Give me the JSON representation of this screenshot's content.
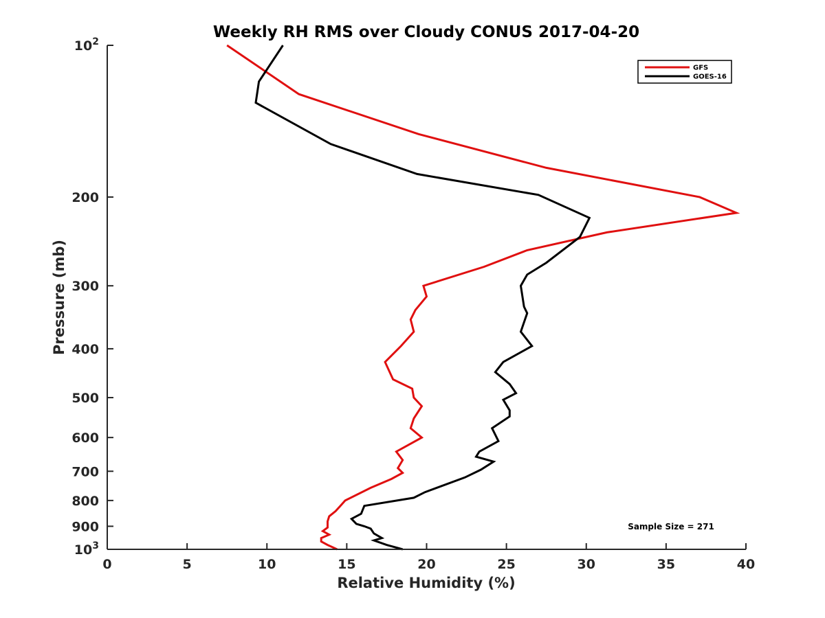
{
  "chart_data": {
    "type": "line",
    "title": "Weekly RH RMS over Cloudy CONUS 2017-04-20",
    "xlabel": "Relative Humidity (%)",
    "ylabel": "Pressure (mb)",
    "xlim": [
      0,
      40
    ],
    "ylim": [
      100,
      1000
    ],
    "y_scale": "log",
    "y_reversed": true,
    "x_ticks": [
      "0",
      "5",
      "10",
      "15",
      "20",
      "25",
      "30",
      "35",
      "40"
    ],
    "y_ticks": [
      {
        "value": 100,
        "label": "10",
        "sup": "2"
      },
      {
        "value": 200,
        "label": "200",
        "sup": ""
      },
      {
        "value": 300,
        "label": "300",
        "sup": ""
      },
      {
        "value": 400,
        "label": "400",
        "sup": ""
      },
      {
        "value": 500,
        "label": "500",
        "sup": ""
      },
      {
        "value": 600,
        "label": "600",
        "sup": ""
      },
      {
        "value": 700,
        "label": "700",
        "sup": ""
      },
      {
        "value": 800,
        "label": "800",
        "sup": ""
      },
      {
        "value": 900,
        "label": "900",
        "sup": ""
      },
      {
        "value": 1000,
        "label": "10",
        "sup": "3"
      }
    ],
    "grid": false,
    "legend_position": "top-right",
    "series": [
      {
        "name": "GFS",
        "color": "#e01010",
        "points": [
          [
            7.5,
            100
          ],
          [
            12,
            125
          ],
          [
            19.5,
            150
          ],
          [
            27.5,
            175
          ],
          [
            37.1,
            200
          ],
          [
            39.4,
            215
          ],
          [
            31.3,
            235
          ],
          [
            26.3,
            255
          ],
          [
            23.6,
            275
          ],
          [
            19.8,
            300
          ],
          [
            20,
            315
          ],
          [
            19.3,
            335
          ],
          [
            19,
            350
          ],
          [
            19.2,
            370
          ],
          [
            18.4,
            395
          ],
          [
            17.4,
            425
          ],
          [
            17.9,
            460
          ],
          [
            19.1,
            480
          ],
          [
            19.2,
            500
          ],
          [
            19.7,
            520
          ],
          [
            19.2,
            550
          ],
          [
            19,
            575
          ],
          [
            19.7,
            600
          ],
          [
            18.1,
            640
          ],
          [
            18.5,
            665
          ],
          [
            18.2,
            690
          ],
          [
            18.5,
            705
          ],
          [
            17.8,
            725
          ],
          [
            16.5,
            755
          ],
          [
            14.9,
            800
          ],
          [
            14.6,
            820
          ],
          [
            14.3,
            840
          ],
          [
            13.9,
            860
          ],
          [
            13.8,
            880
          ],
          [
            13.8,
            905
          ],
          [
            13.5,
            920
          ],
          [
            13.9,
            935
          ],
          [
            13.4,
            950
          ],
          [
            13.4,
            965
          ],
          [
            13.8,
            980
          ],
          [
            14.4,
            1000
          ]
        ]
      },
      {
        "name": "GOES-16",
        "color": "#000000",
        "points": [
          [
            11,
            100
          ],
          [
            9.5,
            118
          ],
          [
            9.3,
            130
          ],
          [
            14,
            157
          ],
          [
            19.4,
            180
          ],
          [
            27,
            198
          ],
          [
            30.2,
            220
          ],
          [
            29.6,
            240
          ],
          [
            27.5,
            270
          ],
          [
            26.3,
            285
          ],
          [
            25.9,
            300
          ],
          [
            26.1,
            330
          ],
          [
            26.3,
            340
          ],
          [
            25.9,
            370
          ],
          [
            26.6,
            395
          ],
          [
            24.8,
            425
          ],
          [
            24.3,
            445
          ],
          [
            25.2,
            470
          ],
          [
            25.6,
            490
          ],
          [
            24.8,
            505
          ],
          [
            25.2,
            530
          ],
          [
            25.2,
            545
          ],
          [
            24.1,
            575
          ],
          [
            24.5,
            610
          ],
          [
            23.3,
            640
          ],
          [
            23.1,
            655
          ],
          [
            24.2,
            670
          ],
          [
            23.4,
            695
          ],
          [
            22.4,
            720
          ],
          [
            19.9,
            770
          ],
          [
            19.2,
            790
          ],
          [
            16.1,
            820
          ],
          [
            15.9,
            850
          ],
          [
            15.3,
            870
          ],
          [
            15.6,
            890
          ],
          [
            16.1,
            900
          ],
          [
            16.5,
            910
          ],
          [
            16.7,
            930
          ],
          [
            17.2,
            950
          ],
          [
            16.7,
            960
          ],
          [
            17.5,
            980
          ],
          [
            18.5,
            1000
          ]
        ]
      }
    ],
    "annotations": [
      "Sample Size = 271"
    ]
  }
}
